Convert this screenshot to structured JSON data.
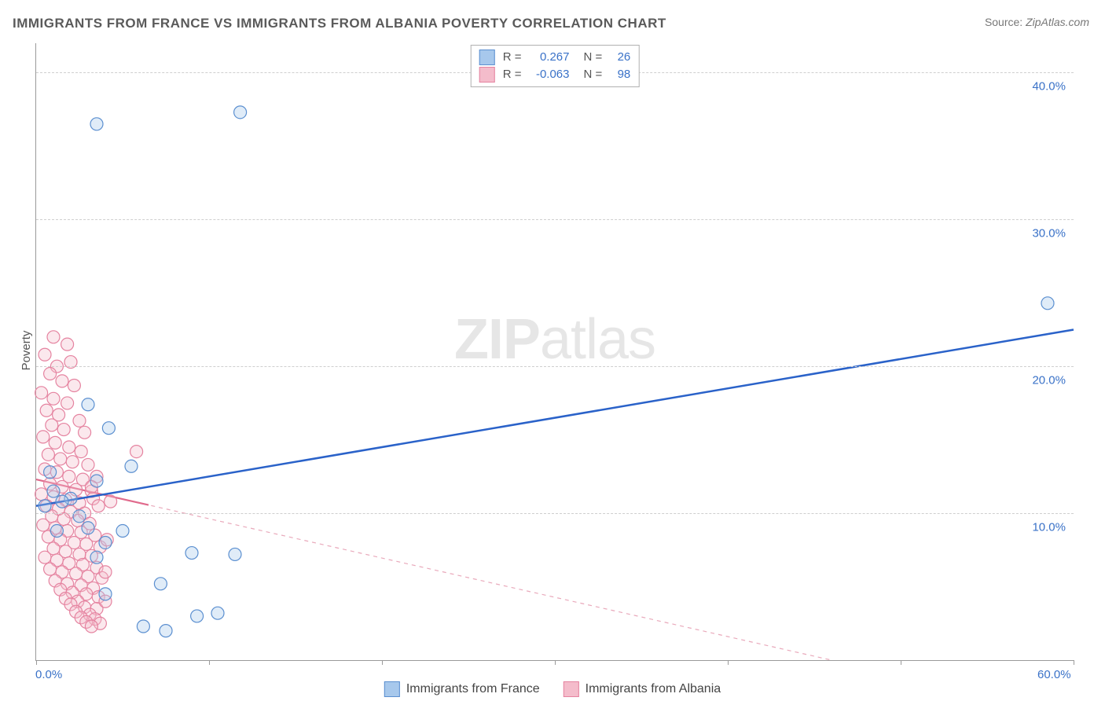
{
  "title": "IMMIGRANTS FROM FRANCE VS IMMIGRANTS FROM ALBANIA POVERTY CORRELATION CHART",
  "source_label": "Source:",
  "source_value": "ZipAtlas.com",
  "ylabel": "Poverty",
  "watermark_head": "ZIP",
  "watermark_tail": "atlas",
  "chart": {
    "type": "scatter",
    "xlim": [
      0,
      60
    ],
    "ylim": [
      0,
      42
    ],
    "y_gridlines": [
      10,
      20,
      30,
      40
    ],
    "y_tick_labels": [
      "10.0%",
      "20.0%",
      "30.0%",
      "40.0%"
    ],
    "x_ticks": [
      0,
      10,
      20,
      30,
      40,
      50,
      60
    ],
    "x_tick_labels": {
      "0": "0.0%",
      "60": "60.0%"
    },
    "background_color": "#ffffff",
    "grid_color": "#cfcfcf",
    "axis_color": "#9a9a9a",
    "tick_label_color": "#3a72c8",
    "marker_radius": 8,
    "series": [
      {
        "id": "france",
        "label": "Immigrants from France",
        "color_fill": "#a7c8ec",
        "color_stroke": "#5b8fd0",
        "R": "0.267",
        "N": "26",
        "trend": {
          "x1": 0,
          "y1": 10.5,
          "x2": 60,
          "y2": 22.5,
          "dashed": false,
          "stroke": "#2a62c9",
          "width": 2.5
        },
        "points": [
          [
            3.5,
            36.5
          ],
          [
            11.8,
            37.3
          ],
          [
            58.5,
            24.3
          ],
          [
            3.0,
            17.4
          ],
          [
            4.2,
            15.8
          ],
          [
            5.5,
            13.2
          ],
          [
            3.5,
            12.2
          ],
          [
            1.0,
            11.5
          ],
          [
            2.0,
            11.0
          ],
          [
            0.5,
            10.5
          ],
          [
            1.5,
            10.8
          ],
          [
            0.8,
            12.8
          ],
          [
            2.5,
            9.8
          ],
          [
            3.0,
            9.0
          ],
          [
            1.2,
            8.8
          ],
          [
            4.0,
            8.0
          ],
          [
            5.0,
            8.8
          ],
          [
            3.5,
            7.0
          ],
          [
            9.0,
            7.3
          ],
          [
            11.5,
            7.2
          ],
          [
            7.2,
            5.2
          ],
          [
            9.3,
            3.0
          ],
          [
            10.5,
            3.2
          ],
          [
            6.2,
            2.3
          ],
          [
            7.5,
            2.0
          ],
          [
            4.0,
            4.5
          ]
        ]
      },
      {
        "id": "albania",
        "label": "Immigrants from Albania",
        "color_fill": "#f4bccb",
        "color_stroke": "#e583a0",
        "R": "-0.063",
        "N": "98",
        "trend": {
          "x1": 0,
          "y1": 12.3,
          "x2": 46,
          "y2": 0,
          "dashed": true,
          "stroke": "#e9a9bb",
          "width": 1.2
        },
        "trend_solid_end_x": 6.5,
        "points": [
          [
            1.0,
            22.0
          ],
          [
            1.8,
            21.5
          ],
          [
            0.5,
            20.8
          ],
          [
            1.2,
            20.0
          ],
          [
            2.0,
            20.3
          ],
          [
            0.8,
            19.5
          ],
          [
            1.5,
            19.0
          ],
          [
            2.2,
            18.7
          ],
          [
            0.3,
            18.2
          ],
          [
            1.0,
            17.8
          ],
          [
            1.8,
            17.5
          ],
          [
            0.6,
            17.0
          ],
          [
            1.3,
            16.7
          ],
          [
            2.5,
            16.3
          ],
          [
            0.9,
            16.0
          ],
          [
            1.6,
            15.7
          ],
          [
            2.8,
            15.5
          ],
          [
            0.4,
            15.2
          ],
          [
            1.1,
            14.8
          ],
          [
            1.9,
            14.5
          ],
          [
            2.6,
            14.2
          ],
          [
            0.7,
            14.0
          ],
          [
            1.4,
            13.7
          ],
          [
            2.1,
            13.5
          ],
          [
            3.0,
            13.3
          ],
          [
            5.8,
            14.2
          ],
          [
            0.5,
            13.0
          ],
          [
            1.2,
            12.8
          ],
          [
            1.9,
            12.5
          ],
          [
            2.7,
            12.3
          ],
          [
            3.5,
            12.5
          ],
          [
            0.8,
            12.0
          ],
          [
            1.5,
            11.8
          ],
          [
            2.3,
            11.6
          ],
          [
            3.2,
            11.5
          ],
          [
            0.3,
            11.3
          ],
          [
            1.0,
            11.1
          ],
          [
            1.7,
            10.9
          ],
          [
            2.5,
            10.7
          ],
          [
            3.3,
            11.0
          ],
          [
            0.6,
            10.5
          ],
          [
            1.3,
            10.3
          ],
          [
            2.0,
            10.1
          ],
          [
            2.8,
            10.0
          ],
          [
            3.6,
            10.5
          ],
          [
            0.9,
            9.8
          ],
          [
            1.6,
            9.6
          ],
          [
            2.4,
            9.5
          ],
          [
            3.1,
            9.3
          ],
          [
            0.4,
            9.2
          ],
          [
            1.1,
            9.0
          ],
          [
            1.8,
            8.8
          ],
          [
            2.6,
            8.7
          ],
          [
            3.4,
            8.5
          ],
          [
            0.7,
            8.4
          ],
          [
            1.4,
            8.2
          ],
          [
            2.2,
            8.0
          ],
          [
            2.9,
            7.9
          ],
          [
            3.7,
            7.7
          ],
          [
            1.0,
            7.6
          ],
          [
            1.7,
            7.4
          ],
          [
            2.5,
            7.2
          ],
          [
            3.2,
            7.1
          ],
          [
            0.5,
            7.0
          ],
          [
            1.2,
            6.8
          ],
          [
            1.9,
            6.6
          ],
          [
            2.7,
            6.5
          ],
          [
            3.5,
            6.3
          ],
          [
            0.8,
            6.2
          ],
          [
            1.5,
            6.0
          ],
          [
            2.3,
            5.9
          ],
          [
            3.0,
            5.7
          ],
          [
            3.8,
            5.6
          ],
          [
            1.1,
            5.4
          ],
          [
            1.8,
            5.2
          ],
          [
            2.6,
            5.1
          ],
          [
            3.3,
            4.9
          ],
          [
            1.4,
            4.8
          ],
          [
            2.1,
            4.6
          ],
          [
            2.9,
            4.5
          ],
          [
            3.6,
            4.3
          ],
          [
            1.7,
            4.2
          ],
          [
            2.4,
            4.0
          ],
          [
            3.2,
            11.8
          ],
          [
            2.0,
            3.8
          ],
          [
            2.8,
            3.6
          ],
          [
            3.5,
            3.5
          ],
          [
            2.3,
            3.3
          ],
          [
            3.1,
            3.1
          ],
          [
            2.6,
            2.9
          ],
          [
            3.4,
            2.8
          ],
          [
            2.9,
            2.6
          ],
          [
            3.7,
            2.5
          ],
          [
            3.2,
            2.3
          ],
          [
            4.0,
            6.0
          ],
          [
            4.1,
            8.2
          ],
          [
            4.3,
            10.8
          ],
          [
            4.0,
            4.0
          ]
        ]
      }
    ]
  },
  "legend_top_rows": [
    {
      "swatch_series": 0,
      "R_label": "R =",
      "N_label": "N ="
    },
    {
      "swatch_series": 1,
      "R_label": "R =",
      "N_label": "N ="
    }
  ]
}
